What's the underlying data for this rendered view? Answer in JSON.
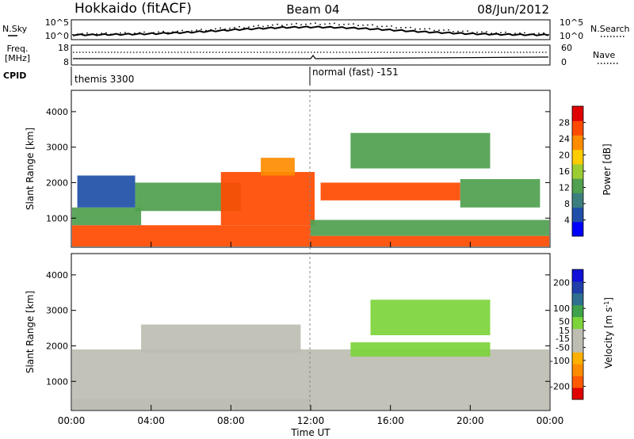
{
  "header": {
    "station": "Hokkaido (fitACF)",
    "beam": "Beam 04",
    "date": "08/Jun/2012"
  },
  "noise_panel": {
    "left_label": "N.Sky",
    "right_label": "N.Search",
    "left_ticks": [
      "10^5",
      "10^0"
    ],
    "right_ticks": [
      "10^5",
      "10^0"
    ]
  },
  "freq_panel": {
    "left_label_1": "Freq.",
    "left_label_2": "[MHz]",
    "left_ticks": [
      "18",
      "8"
    ],
    "right_label": "Nave",
    "right_ticks": [
      "60",
      "0"
    ]
  },
  "cpid_panel": {
    "label": "CPID",
    "mode_1": "themis 3300",
    "mode_2": "normal (fast) -151",
    "mode_2_start_hours": 12.0
  },
  "time_axis": {
    "label": "Time UT",
    "ticks": [
      "00:00",
      "04:00",
      "08:00",
      "12:00",
      "16:00",
      "20:00",
      "00:00"
    ]
  },
  "colors": {
    "power": [
      "#0000ff",
      "#1f4fa8",
      "#3d7f7f",
      "#4fa04f",
      "#9ccc33",
      "#ffcc00",
      "#ff8c00",
      "#ff4a00",
      "#e00000"
    ],
    "velocity": [
      "#e00000",
      "#ff5a00",
      "#ff8c00",
      "#ffb000",
      "#bdbdb2",
      "#bdbdb2",
      "#7cd43a",
      "#3fa24a",
      "#2f6f8f",
      "#1f3ea8",
      "#1010d8"
    ]
  },
  "chart_data": [
    {
      "type": "heatmap",
      "name": "power",
      "ylabel": "Slant Range [km]",
      "yticks": [
        "1000",
        "2000",
        "3000",
        "4000"
      ],
      "ylim": [
        180,
        4600
      ],
      "xlim_hours": [
        0,
        24
      ],
      "colorbar_label": "Power [dB]",
      "colorbar_ticks": [
        "4",
        "8",
        "12",
        "16",
        "20",
        "24",
        "28"
      ],
      "colorbar_range": [
        0,
        32
      ],
      "regions": [
        {
          "x": [
            0,
            12
          ],
          "y": [
            200,
            800
          ],
          "value": 28
        },
        {
          "x": [
            0,
            3.5
          ],
          "y": [
            800,
            1300
          ],
          "value": 12
        },
        {
          "x": [
            0.3,
            3.2
          ],
          "y": [
            1300,
            2200
          ],
          "value": 6
        },
        {
          "x": [
            3.2,
            8.5
          ],
          "y": [
            1200,
            2000
          ],
          "value": 14
        },
        {
          "x": [
            7.5,
            12.2
          ],
          "y": [
            800,
            2300
          ],
          "value": 26
        },
        {
          "x": [
            9.5,
            11.2
          ],
          "y": [
            2200,
            2700
          ],
          "value": 22
        },
        {
          "x": [
            12,
            24
          ],
          "y": [
            200,
            500
          ],
          "value": 26
        },
        {
          "x": [
            12,
            24
          ],
          "y": [
            500,
            950
          ],
          "value": 14
        },
        {
          "x": [
            12.5,
            19.5
          ],
          "y": [
            1500,
            2000
          ],
          "value": 26
        },
        {
          "x": [
            19.5,
            23.5
          ],
          "y": [
            1300,
            2100
          ],
          "value": 12
        },
        {
          "x": [
            14,
            21
          ],
          "y": [
            2400,
            3400
          ],
          "value": 12
        }
      ]
    },
    {
      "type": "heatmap",
      "name": "velocity",
      "ylabel": "Slant Range [km]",
      "yticks": [
        "1000",
        "2000",
        "3000",
        "4000"
      ],
      "ylim": [
        180,
        4600
      ],
      "xlim_hours": [
        0,
        24
      ],
      "colorbar_label": "Velocity [m s^-1]",
      "colorbar_ticks": [
        "-200",
        "-100",
        "-50",
        "-15",
        "15",
        "50",
        "100",
        "200"
      ],
      "colorbar_range": [
        -250,
        250
      ],
      "regions": [
        {
          "x": [
            0,
            12
          ],
          "y": [
            200,
            1900
          ],
          "value": 0
        },
        {
          "x": [
            3.5,
            11.5
          ],
          "y": [
            1800,
            2600
          ],
          "value": 0
        },
        {
          "x": [
            0,
            12
          ],
          "y": [
            200,
            500
          ],
          "value": -40
        },
        {
          "x": [
            12,
            24
          ],
          "y": [
            200,
            1900
          ],
          "value": 0
        },
        {
          "x": [
            14,
            21
          ],
          "y": [
            1700,
            2100
          ],
          "value": 40
        },
        {
          "x": [
            15,
            21
          ],
          "y": [
            2300,
            3300
          ],
          "value": 30
        }
      ]
    }
  ]
}
